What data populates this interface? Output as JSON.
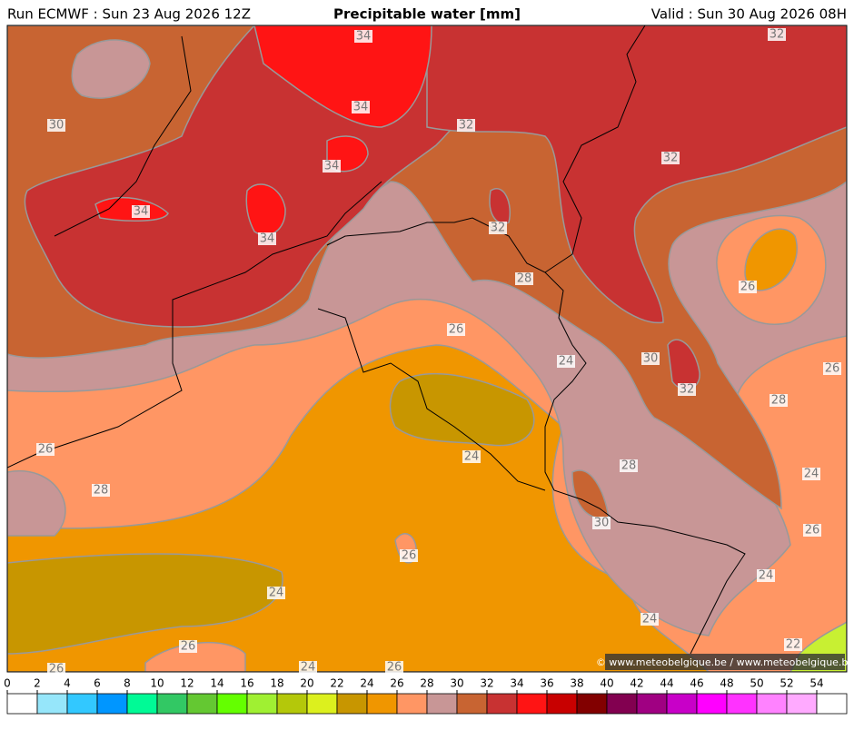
{
  "header": {
    "run": "Run ECMWF : Sun 23 Aug 2026 12Z",
    "title": "Precipitable water [mm]",
    "valid": "Valid : Sun 30 Aug 2026 08H"
  },
  "map": {
    "contour_labels": [
      34,
      34,
      32,
      32,
      30,
      34,
      32,
      34,
      34,
      32,
      28,
      26,
      26,
      24,
      30,
      26,
      32,
      28,
      26,
      24,
      28,
      24,
      28,
      30,
      26,
      26,
      24,
      24,
      24,
      26,
      22,
      24,
      26,
      26
    ]
  },
  "credit": "© www.meteobelgique.be / www.meteobelgique.be",
  "colorbar": {
    "ticks": [
      0,
      2,
      4,
      6,
      8,
      10,
      12,
      14,
      16,
      18,
      20,
      22,
      24,
      26,
      28,
      30,
      32,
      34,
      36,
      38,
      40,
      42,
      44,
      46,
      48,
      50,
      52,
      54
    ],
    "colors": [
      "#ffffff",
      "#96e6fa",
      "#32c8ff",
      "#0096ff",
      "#00fa96",
      "#32c864",
      "#64c832",
      "#64ff00",
      "#a0f032",
      "#b4c80a",
      "#dcf01e",
      "#c89600",
      "#f09600",
      "#ff9664",
      "#c89696",
      "#c86432",
      "#c83232",
      "#ff1414",
      "#c80000",
      "#820000",
      "#820050",
      "#a00082",
      "#c800c8",
      "#ff00ff",
      "#ff32ff",
      "#ff82ff",
      "#ffaaff",
      "#ffffff"
    ]
  }
}
